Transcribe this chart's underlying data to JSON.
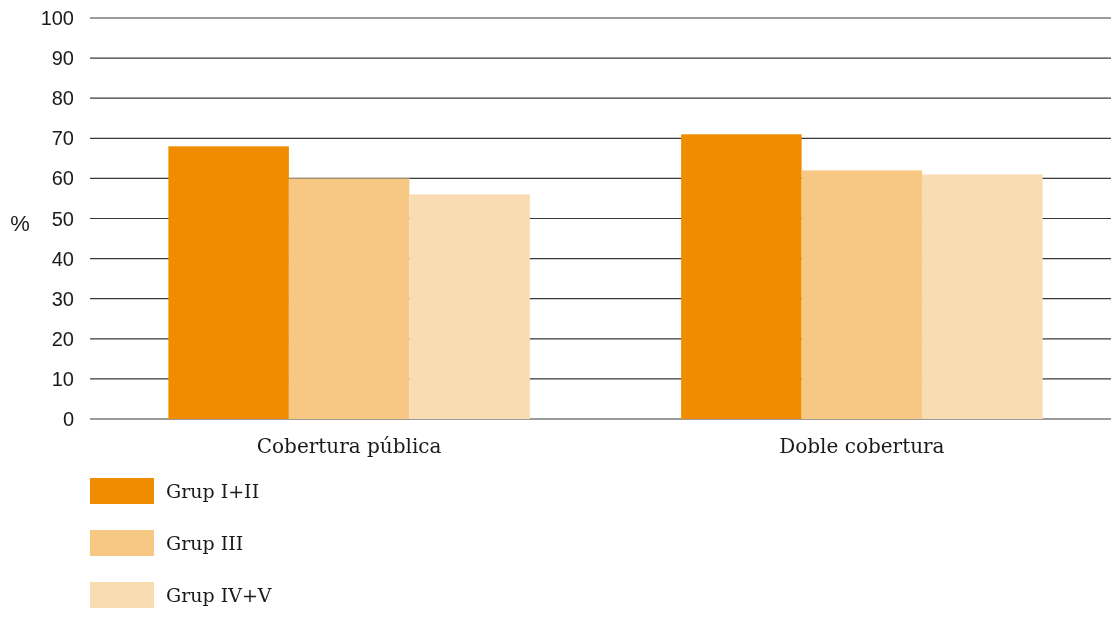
{
  "chart_data": {
    "type": "bar",
    "ylabel": "%",
    "categories": [
      "Cobertura pública",
      "Doble cobertura"
    ],
    "series": [
      {
        "name": "Grup I+II",
        "color": "#f08c00",
        "values": [
          68,
          71
        ]
      },
      {
        "name": "Grup III",
        "color": "#f7c883",
        "values": [
          60,
          62
        ]
      },
      {
        "name": "Grup IV+V",
        "color": "#f9dcb2",
        "values": [
          56,
          61
        ]
      }
    ],
    "ylim": [
      0,
      100
    ],
    "yticks": [
      0,
      10,
      20,
      30,
      40,
      50,
      60,
      70,
      80,
      90,
      100
    ],
    "grid": "y",
    "legend": "bottom"
  }
}
